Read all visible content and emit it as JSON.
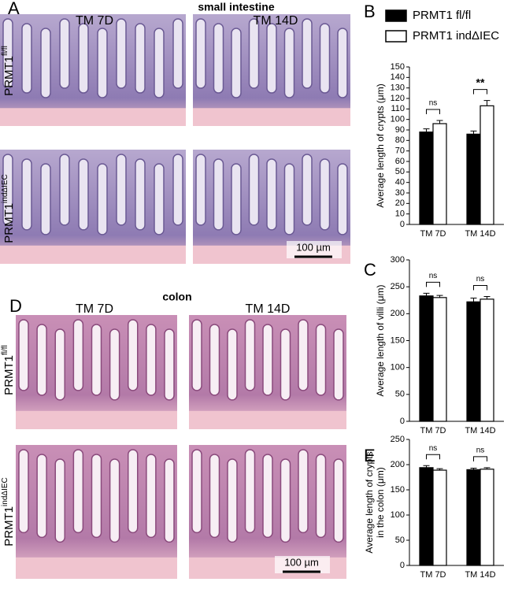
{
  "figure": {
    "panel_labels": [
      "A",
      "B",
      "C",
      "D",
      "E"
    ],
    "small_intestine": {
      "title": "small intestine",
      "columns": [
        "TM 7D",
        "TM 14D"
      ],
      "rows": [
        {
          "base": "PRMT1",
          "sup": "fl/fl"
        },
        {
          "base": "PRMT1",
          "sup": "indΔIEC"
        }
      ],
      "scale_bar": "100 µm"
    },
    "colon": {
      "title": "colon",
      "columns": [
        "TM 7D",
        "TM 14D"
      ],
      "rows": [
        {
          "base": "PRMT1",
          "sup": "fl/fl"
        },
        {
          "base": "PRMT1",
          "sup": "indΔIEC"
        }
      ],
      "scale_bar": "100 µm"
    }
  },
  "chart_data": [
    {
      "type": "bar",
      "ylabel": [
        "Average length of crypts (μm)"
      ],
      "categories": [
        "TM 7D",
        "TM 14D"
      ],
      "series": [
        {
          "name": "PRMT1 fl/fl",
          "color": "#000000",
          "values": [
            88,
            86
          ],
          "errors": [
            3,
            3
          ]
        },
        {
          "name": "PRMT1 indΔIEC",
          "color": "#ffffff",
          "values": [
            96,
            113
          ],
          "errors": [
            3,
            5
          ]
        }
      ],
      "ylim": [
        0,
        150
      ],
      "yticks": [
        0,
        10,
        20,
        30,
        40,
        50,
        60,
        70,
        80,
        90,
        100,
        110,
        120,
        130,
        140,
        150
      ],
      "annotations": [
        "ns",
        "**"
      ],
      "legend": "top"
    },
    {
      "type": "bar",
      "ylabel": [
        "Average length of villi (μm)"
      ],
      "categories": [
        "TM 7D",
        "TM 14D"
      ],
      "series": [
        {
          "color": "#000000",
          "values": [
            233,
            222
          ],
          "errors": [
            5,
            7
          ]
        },
        {
          "color": "#ffffff",
          "values": [
            230,
            227
          ],
          "errors": [
            4,
            5
          ]
        }
      ],
      "ylim": [
        0,
        300
      ],
      "yticks": [
        0,
        50,
        100,
        150,
        200,
        250,
        300
      ],
      "annotations": [
        "ns",
        "ns"
      ]
    },
    {
      "type": "bar",
      "ylabel": [
        "Average length of crypts",
        "in the colon (μm)"
      ],
      "categories": [
        "TM 7D",
        "TM 14D"
      ],
      "series": [
        {
          "color": "#000000",
          "values": [
            194,
            190
          ],
          "errors": [
            4,
            3
          ]
        },
        {
          "color": "#ffffff",
          "values": [
            189,
            191
          ],
          "errors": [
            3,
            3
          ]
        }
      ],
      "ylim": [
        0,
        250
      ],
      "yticks": [
        0,
        50,
        100,
        150,
        200,
        250
      ],
      "annotations": [
        "ns",
        "ns"
      ]
    }
  ]
}
